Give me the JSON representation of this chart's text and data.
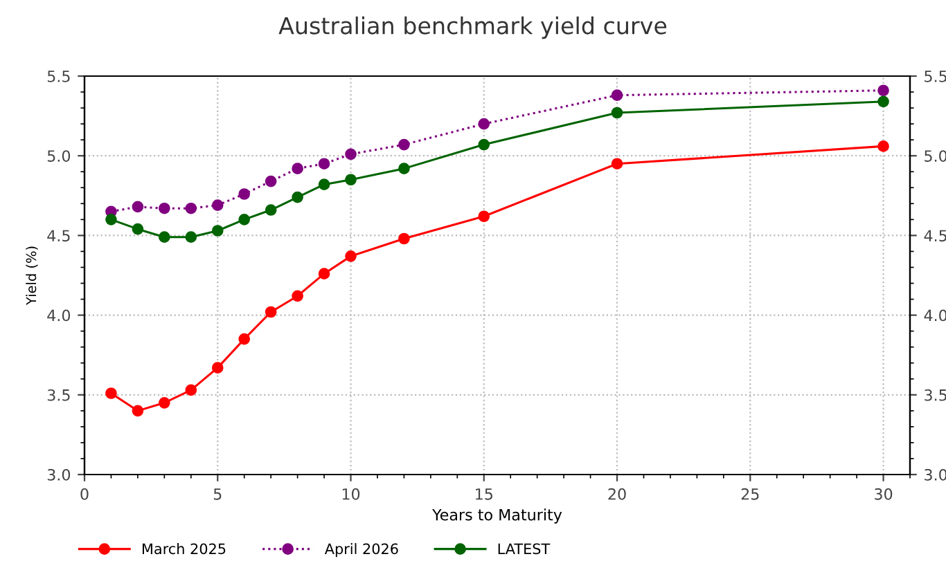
{
  "chart_data": {
    "type": "line",
    "title": "Australian benchmark yield curve",
    "xlabel": "Years to Maturity",
    "ylabel": "Yield (%)",
    "x": [
      1,
      2,
      3,
      4,
      5,
      6,
      7,
      8,
      9,
      10,
      12,
      15,
      20,
      30
    ],
    "series": [
      {
        "name": "March 2025",
        "color": "#ff0000",
        "line_style": "solid",
        "values": [
          3.51,
          3.4,
          3.45,
          3.53,
          3.67,
          3.85,
          4.02,
          4.12,
          4.26,
          4.37,
          4.48,
          4.62,
          4.95,
          5.06
        ]
      },
      {
        "name": "April 2026",
        "color": "#800080",
        "line_style": "dotted",
        "values": [
          4.65,
          4.68,
          4.67,
          4.67,
          4.69,
          4.76,
          4.84,
          4.92,
          4.95,
          5.01,
          5.07,
          5.2,
          5.38,
          5.41
        ]
      },
      {
        "name": "LATEST",
        "color": "#006400",
        "line_style": "solid",
        "values": [
          4.6,
          4.54,
          4.49,
          4.49,
          4.53,
          4.6,
          4.66,
          4.74,
          4.82,
          4.85,
          4.92,
          5.07,
          5.27,
          5.34
        ]
      }
    ],
    "xlim": [
      0,
      31
    ],
    "xticks": [
      0,
      5,
      10,
      15,
      20,
      25,
      30
    ],
    "ylim": [
      3.0,
      5.5
    ],
    "yticks": [
      {
        "value": 3.0,
        "label": "3.0"
      },
      {
        "value": 3.5,
        "label": "3.5"
      },
      {
        "value": 4.0,
        "label": "4.0"
      },
      {
        "value": 4.5,
        "label": "4.5"
      },
      {
        "value": 5.0,
        "label": "5.0"
      },
      {
        "value": 5.5,
        "label": "5.5"
      }
    ],
    "y2lim": [
      3.0,
      5.5
    ],
    "y2ticks": [
      {
        "value": 3.0,
        "label": "3.0"
      },
      {
        "value": 3.5,
        "label": "3.5"
      },
      {
        "value": 4.0,
        "label": "4.0"
      },
      {
        "value": 4.5,
        "label": "4.5"
      },
      {
        "value": 5.0,
        "label": "5.0"
      },
      {
        "value": 5.5,
        "label": "5.5"
      }
    ],
    "grid": true,
    "legend": "bottom",
    "marker": "circle"
  }
}
